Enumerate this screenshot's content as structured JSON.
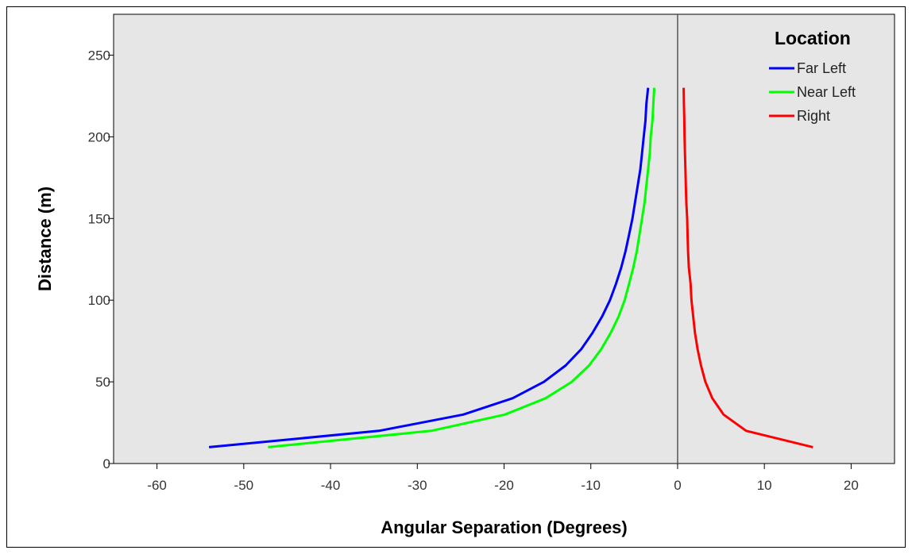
{
  "chart_data": {
    "type": "line",
    "title": "",
    "xlabel": "Angular Separation (Degrees)",
    "ylabel": "Distance (m)",
    "xlim": [
      -65,
      25
    ],
    "ylim": [
      0,
      275
    ],
    "x_ticks": [
      -60,
      -50,
      -40,
      -30,
      -20,
      -10,
      0,
      10,
      20
    ],
    "y_ticks": [
      0,
      50,
      100,
      150,
      200,
      250
    ],
    "grid": false,
    "reference_line_x": 0,
    "legend": {
      "title": "Location",
      "placement": "top-right"
    },
    "background_color": "#e6e6e6",
    "series": [
      {
        "name": "Far Left",
        "color": "#0000ff",
        "points": [
          [
            -54.0,
            10
          ],
          [
            -34.4,
            20
          ],
          [
            -24.7,
            30
          ],
          [
            -19.0,
            40
          ],
          [
            -15.4,
            50
          ],
          [
            -12.9,
            60
          ],
          [
            -11.1,
            70
          ],
          [
            -9.8,
            80
          ],
          [
            -8.7,
            90
          ],
          [
            -7.8,
            100
          ],
          [
            -7.1,
            110
          ],
          [
            -6.5,
            120
          ],
          [
            -6.0,
            130
          ],
          [
            -5.6,
            140
          ],
          [
            -5.2,
            150
          ],
          [
            -4.9,
            160
          ],
          [
            -4.6,
            170
          ],
          [
            -4.3,
            180
          ],
          [
            -4.1,
            190
          ],
          [
            -3.9,
            200
          ],
          [
            -3.7,
            210
          ],
          [
            -3.6,
            220
          ],
          [
            -3.4,
            230
          ]
        ]
      },
      {
        "name": "Near Left",
        "color": "#00ff00",
        "points": [
          [
            -47.2,
            10
          ],
          [
            -28.4,
            20
          ],
          [
            -19.9,
            30
          ],
          [
            -15.2,
            40
          ],
          [
            -12.2,
            50
          ],
          [
            -10.2,
            60
          ],
          [
            -8.8,
            70
          ],
          [
            -7.7,
            80
          ],
          [
            -6.8,
            90
          ],
          [
            -6.1,
            100
          ],
          [
            -5.6,
            110
          ],
          [
            -5.1,
            120
          ],
          [
            -4.7,
            130
          ],
          [
            -4.4,
            140
          ],
          [
            -4.1,
            150
          ],
          [
            -3.8,
            160
          ],
          [
            -3.6,
            170
          ],
          [
            -3.4,
            180
          ],
          [
            -3.2,
            190
          ],
          [
            -3.1,
            200
          ],
          [
            -2.9,
            210
          ],
          [
            -2.8,
            220
          ],
          [
            -2.7,
            230
          ]
        ]
      },
      {
        "name": "Right",
        "color": "#ff0000",
        "points": [
          [
            15.6,
            10
          ],
          [
            7.9,
            20
          ],
          [
            5.3,
            30
          ],
          [
            4.0,
            40
          ],
          [
            3.2,
            50
          ],
          [
            2.7,
            60
          ],
          [
            2.3,
            70
          ],
          [
            2.0,
            80
          ],
          [
            1.8,
            90
          ],
          [
            1.6,
            100
          ],
          [
            1.5,
            110
          ],
          [
            1.3,
            120
          ],
          [
            1.2,
            130
          ],
          [
            1.15,
            140
          ],
          [
            1.1,
            150
          ],
          [
            1.0,
            160
          ],
          [
            0.95,
            170
          ],
          [
            0.9,
            180
          ],
          [
            0.85,
            190
          ],
          [
            0.8,
            200
          ],
          [
            0.77,
            210
          ],
          [
            0.73,
            220
          ],
          [
            0.7,
            230
          ]
        ]
      }
    ]
  }
}
